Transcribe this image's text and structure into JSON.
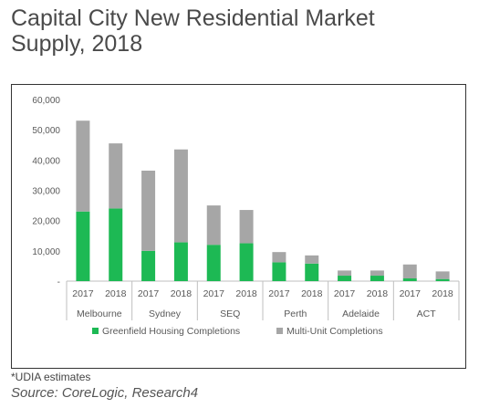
{
  "title_line1": "Capital City New Residential Market",
  "title_line2": "Supply, 2018",
  "footnote": "*UDIA estimates",
  "source": "Source: CoreLogic, Research4",
  "colors": {
    "green": "#1db954",
    "grey": "#a6a6a6",
    "axis": "#bfbfbf",
    "text": "#595959"
  },
  "chart_data": {
    "type": "bar",
    "stacked": true,
    "title": "Capital City New Residential Market Supply, 2018",
    "xlabel": "",
    "ylabel": "",
    "ylim": [
      0,
      60000
    ],
    "yticks": [
      "60,000",
      "50,000",
      "40,000",
      "30,000",
      "20,000",
      "10,000",
      "-"
    ],
    "ytick_values": [
      60000,
      50000,
      40000,
      30000,
      20000,
      10000,
      0
    ],
    "groups": [
      "Melbourne",
      "Sydney",
      "SEQ",
      "Perth",
      "Adelaide",
      "ACT"
    ],
    "categories": [
      "2017",
      "2018",
      "2017",
      "2018",
      "2017",
      "2018",
      "2017",
      "2018",
      "2017",
      "2018",
      "2017",
      "2018"
    ],
    "series": [
      {
        "name": "Greenfield Housing Completions",
        "color": "#1db954",
        "values": [
          23000,
          24000,
          10000,
          12800,
          12000,
          12500,
          6200,
          5800,
          1800,
          1800,
          900,
          700
        ]
      },
      {
        "name": "Multi-Unit Completions",
        "color": "#a6a6a6",
        "values": [
          30000,
          21500,
          26500,
          30700,
          13000,
          11000,
          3400,
          2700,
          1700,
          1700,
          4600,
          2500
        ]
      }
    ],
    "legend_position": "bottom",
    "grid": false
  }
}
